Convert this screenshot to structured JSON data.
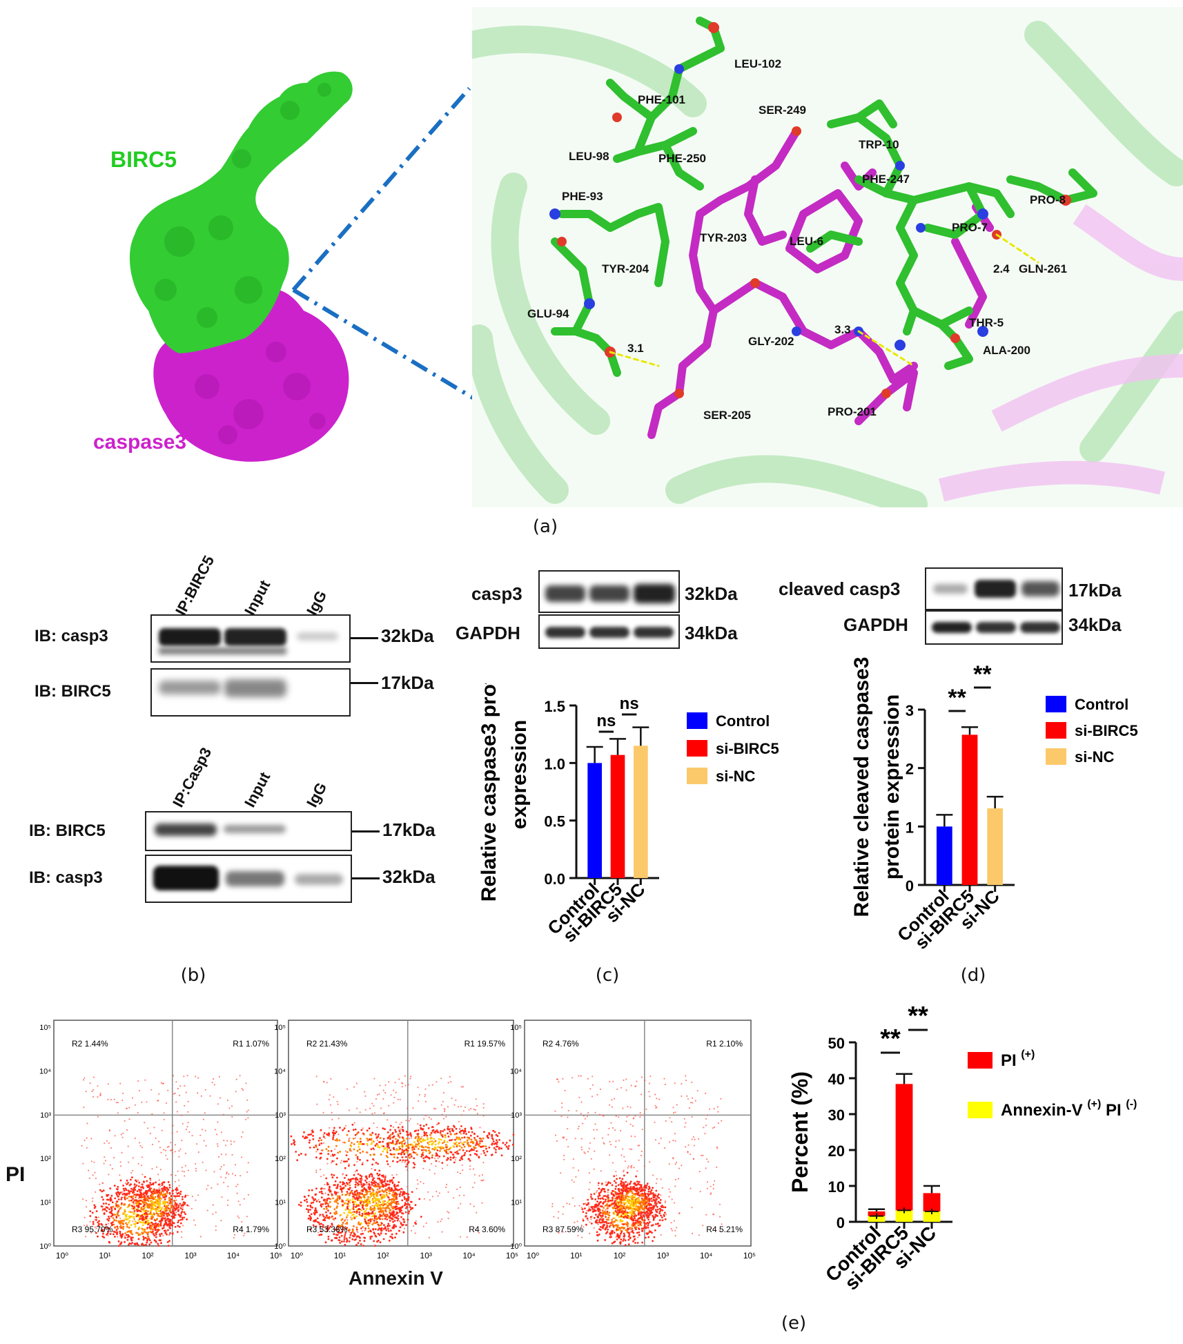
{
  "panel_labels": {
    "a": "(a)",
    "b": "(b)",
    "c": "(c)",
    "d": "(d)",
    "e": "(e)"
  },
  "panel_a": {
    "protein_labels": {
      "birc5": "BIRC5",
      "caspase3": "caspase3"
    },
    "residues": [
      "LEU-102",
      "PHE-101",
      "SER-249",
      "TRP-10",
      "LEU-98",
      "PHE-250",
      "PHE-247",
      "PHE-93",
      "PRO-8",
      "PRO-7",
      "TYR-203",
      "LEU-6",
      "GLN-261",
      "TYR-204",
      "GLU-94",
      "THR-5",
      "GLY-202",
      "ALA-200",
      "PRO-201",
      "SER-205"
    ],
    "distances": [
      "3.1",
      "3.3",
      "2.4"
    ],
    "colors": {
      "birc5": "#2ecc2e",
      "caspase3": "#cc22cc",
      "connector": "#1a6fc2"
    }
  },
  "panel_b": {
    "top": {
      "lanes": [
        "IP:BIRC5",
        "Input",
        "IgG"
      ],
      "rows": [
        {
          "ib": "IB: casp3",
          "kda": "32kDa"
        },
        {
          "ib": "IB: BIRC5",
          "kda": "17kDa"
        }
      ]
    },
    "bottom": {
      "lanes": [
        "IP:Casp3",
        "Input",
        "IgG"
      ],
      "rows": [
        {
          "ib": "IB: BIRC5",
          "kda": "17kDa"
        },
        {
          "ib": "IB: casp3",
          "kda": "32kDa"
        }
      ]
    }
  },
  "panel_c": {
    "blots": [
      {
        "name": "casp3",
        "kda": "32kDa"
      },
      {
        "name": "GAPDH",
        "kda": "34kDa"
      }
    ]
  },
  "panel_d": {
    "blots": [
      {
        "name": "cleaved casp3",
        "kda": "17kDa"
      },
      {
        "name": "GAPDH",
        "kda": "34kDa"
      }
    ]
  },
  "panel_e_flow": {
    "xlabel": "Annexin V",
    "ylabel": "PI",
    "ticks": [
      "10⁰",
      "10¹",
      "10²",
      "10³",
      "10⁴",
      "10⁵"
    ],
    "plots": [
      {
        "quadrants": {
          "R1": "1.07%",
          "R2": "1.44%",
          "R3": "95.70%",
          "R4": "1.79%"
        }
      },
      {
        "quadrants": {
          "R1": "19.57%",
          "R2": "21.43%",
          "R3": "53.36%",
          "R4": "3.60%"
        }
      },
      {
        "quadrants": {
          "R1": "2.10%",
          "R2": "4.76%",
          "R3": "87.59%",
          "R4": "5.21%"
        }
      }
    ]
  },
  "chart_data": [
    {
      "type": "bar",
      "categories": [
        "Control",
        "si-BIRC5",
        "si-NC"
      ],
      "series": [
        {
          "name": "Control",
          "values": [
            1.0,
            null,
            null
          ],
          "color": "#0000ff"
        },
        {
          "name": "si-BIRC5",
          "values": [
            null,
            1.07,
            null
          ],
          "color": "#ff0000"
        },
        {
          "name": "si-NC",
          "values": [
            null,
            null,
            1.15
          ],
          "color": "#fbc96a"
        }
      ],
      "values": [
        1.0,
        1.07,
        1.15
      ],
      "errors": [
        0.14,
        0.14,
        0.16
      ],
      "ylabel": "Relative caspase3 protein expression",
      "ylim": [
        0,
        1.5
      ],
      "yticks": [
        "0.0",
        "0.5",
        "1.0",
        "1.5"
      ],
      "significance": [
        "ns",
        "ns"
      ],
      "legend": "right"
    },
    {
      "type": "bar",
      "categories": [
        "Control",
        "si-BIRC5",
        "si-NC"
      ],
      "series": [
        {
          "name": "Control",
          "values": [
            1.0,
            null,
            null
          ],
          "color": "#0000ff"
        },
        {
          "name": "si-BIRC5",
          "values": [
            null,
            2.57,
            null
          ],
          "color": "#ff0000"
        },
        {
          "name": "si-NC",
          "values": [
            null,
            null,
            1.31
          ],
          "color": "#fbc96a"
        }
      ],
      "values": [
        1.0,
        2.57,
        1.31
      ],
      "errors": [
        0.2,
        0.13,
        0.2
      ],
      "ylabel": "Relative cleaved caspase3 protein expression",
      "ylim": [
        0,
        3
      ],
      "yticks": [
        "0",
        "1",
        "2",
        "3"
      ],
      "significance": [
        "**",
        "**"
      ],
      "legend": "right"
    },
    {
      "type": "bar",
      "stacked": true,
      "categories": [
        "Control",
        "si-BIRC5",
        "si-NC"
      ],
      "series": [
        {
          "name": "Annexin-V (+) PI (-)",
          "values": [
            1.6,
            3.2,
            2.9
          ],
          "color": "#ffff00"
        },
        {
          "name": "PI (+)",
          "values": [
            1.3,
            35.2,
            5.1
          ],
          "color": "#ff0000"
        }
      ],
      "errors": [
        0.6,
        2.8,
        2.0
      ],
      "ylabel": "Percent (%)",
      "ylim": [
        0,
        50
      ],
      "yticks": [
        "0",
        "10",
        "20",
        "30",
        "40",
        "50"
      ],
      "significance": [
        "**",
        "**"
      ],
      "legend": "right"
    }
  ]
}
